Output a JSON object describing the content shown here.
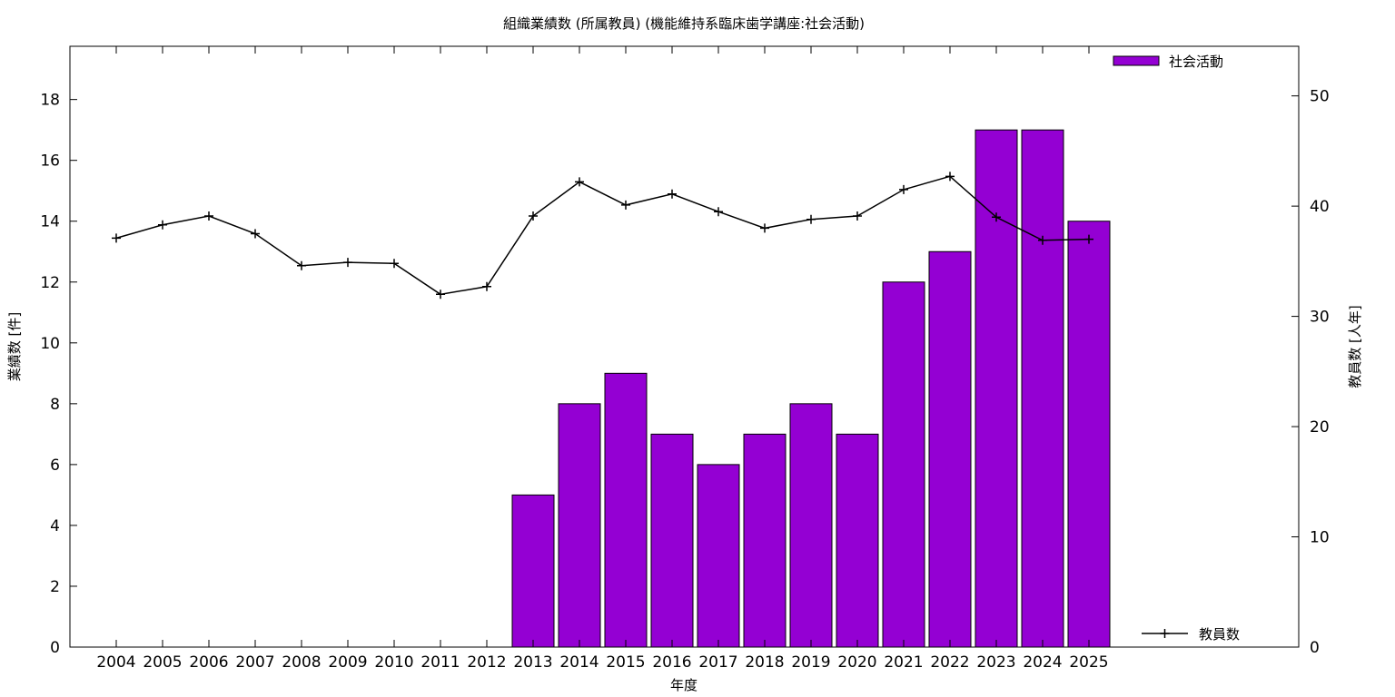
{
  "chart_data": {
    "type": "bar",
    "title": "組織業績数 (所属教員) (機能維持系臨床歯学講座:社会活動)",
    "xlabel": "年度",
    "ylabel": "業績数 [件]",
    "y2label": "教員数 [人年]",
    "categories": [
      "2004",
      "2005",
      "2006",
      "2007",
      "2008",
      "2009",
      "2010",
      "2011",
      "2012",
      "2013",
      "2014",
      "2015",
      "2016",
      "2017",
      "2018",
      "2019",
      "2020",
      "2021",
      "2022",
      "2023",
      "2024",
      "2025"
    ],
    "ylim": [
      0,
      19.75
    ],
    "y2lim": [
      0,
      54.5
    ],
    "yticks": [
      0,
      2,
      4,
      6,
      8,
      10,
      12,
      14,
      16,
      18
    ],
    "y2ticks": [
      0,
      10,
      20,
      30,
      40,
      50
    ],
    "grid": false,
    "legend_placement": "top-right (bars), bottom-right (line)",
    "series": [
      {
        "name": "社会活動",
        "kind": "bar",
        "axis": "left",
        "color": "#9400d3",
        "values": [
          0,
          0,
          0,
          0,
          0,
          0,
          0,
          0,
          0,
          5,
          8,
          9,
          7,
          6,
          7,
          8,
          7,
          12,
          13,
          17,
          17,
          14
        ]
      },
      {
        "name": "教員数",
        "kind": "line",
        "axis": "right",
        "color": "#000000",
        "values": [
          37.1,
          38.3,
          39.1,
          37.5,
          34.6,
          34.9,
          34.8,
          32.0,
          32.7,
          39.1,
          42.2,
          40.1,
          41.1,
          39.5,
          38.0,
          38.8,
          39.1,
          41.5,
          42.7,
          39.0,
          36.9,
          37.0
        ]
      }
    ]
  }
}
